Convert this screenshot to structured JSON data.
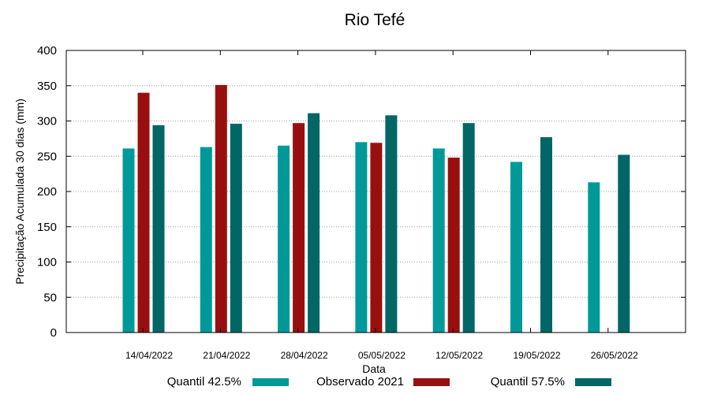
{
  "chart_data": {
    "type": "bar",
    "title": "Rio Tefé",
    "xlabel": "Data",
    "ylabel": "Precipitação Acumulada 30 dias (mm)",
    "ylim": [
      0,
      400
    ],
    "yticks": [
      0,
      50,
      100,
      150,
      200,
      250,
      300,
      350,
      400
    ],
    "grid": true,
    "legend": "bottom",
    "categories": [
      "14/04/2022",
      "21/04/2022",
      "28/04/2022",
      "05/05/2022",
      "12/05/2022",
      "19/05/2022",
      "26/05/2022"
    ],
    "series": [
      {
        "name": "Quantil 42.5%",
        "color": "#009999",
        "values": [
          261,
          263,
          265,
          270,
          261,
          242,
          213
        ]
      },
      {
        "name": "Observado 2021",
        "color": "#990f0f",
        "values": [
          340,
          351,
          297,
          269,
          248,
          null,
          null
        ]
      },
      {
        "name": "Quantil 57.5%",
        "color": "#006666",
        "values": [
          294,
          296,
          311,
          308,
          297,
          277,
          252
        ]
      }
    ]
  }
}
